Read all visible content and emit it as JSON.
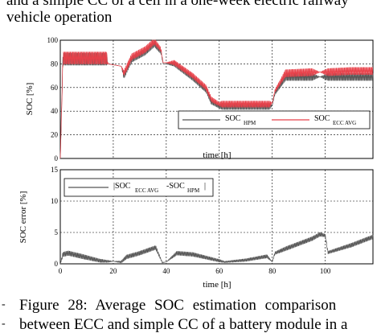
{
  "page_text": {
    "line1": "and a simple CC of a cell in a one-week electric railway",
    "line2": "vehicle operation",
    "caption_line1": "Figure 28: Average SOC estimation comparison",
    "caption_line2": "between ECC and simple CC of a battery module in a",
    "bullet1": "-",
    "bullet2": "-"
  },
  "chart_data": [
    {
      "type": "line",
      "ylabel": "SOC [%]",
      "xlabel": "time [h]",
      "xlim": [
        0,
        118
      ],
      "ylim": [
        0,
        100
      ],
      "xticks": [
        "0",
        "20",
        "40",
        "60",
        "80",
        "100"
      ],
      "yticks": [
        "0",
        "20",
        "40",
        "60",
        "80",
        "100"
      ],
      "grid": true,
      "legend_position": "bottom-right",
      "series": [
        {
          "name": "SOC_HPM",
          "name_main": "SOC",
          "name_sub": "HPM",
          "color": "#555555",
          "x": [
            0,
            1,
            3,
            10,
            17.5,
            18,
            23,
            24,
            27,
            32,
            35.5,
            38,
            38.8,
            40,
            43,
            50,
            55,
            57,
            60,
            61,
            70,
            79,
            80,
            81,
            85,
            95,
            98,
            101,
            110,
            118
          ],
          "y": [
            0,
            84,
            84,
            84,
            84,
            80,
            78,
            70,
            84,
            90,
            97,
            90,
            80,
            80,
            80,
            68,
            58,
            48,
            44,
            44,
            44,
            44,
            45,
            55,
            69,
            69,
            69,
            69,
            69,
            69
          ],
          "amplitude": [
            0,
            10,
            10,
            10,
            10,
            0,
            0,
            5,
            5,
            5,
            5,
            3,
            0,
            0,
            4,
            4,
            4,
            4,
            3,
            5,
            5,
            5,
            0,
            2,
            6,
            6,
            0,
            6,
            6,
            6
          ]
        },
        {
          "name": "SOC_ECC AVG",
          "name_main": "SOC",
          "name_sub": "ECC AVG",
          "color": "#e8414a",
          "x": [
            0,
            1,
            3,
            10,
            17.5,
            18,
            23,
            24,
            27,
            32,
            35.5,
            38,
            38.8,
            40,
            43,
            50,
            55,
            57,
            60,
            61,
            70,
            79,
            80,
            81,
            85,
            95,
            98,
            101,
            110,
            118
          ],
          "y": [
            0,
            85,
            85,
            85,
            85,
            80,
            78,
            72,
            86,
            92,
            99,
            92,
            81,
            81,
            81,
            70,
            60,
            50,
            46,
            46,
            46,
            46,
            47,
            57,
            72,
            73,
            73,
            73,
            74,
            74
          ],
          "amplitude": [
            0,
            10,
            10,
            10,
            10,
            0,
            0,
            5,
            5,
            5,
            5,
            3,
            0,
            0,
            4,
            4,
            4,
            4,
            3,
            5,
            5,
            5,
            0,
            2,
            6,
            6,
            0,
            6,
            6,
            6
          ]
        }
      ]
    },
    {
      "type": "line",
      "ylabel": "SOC error [%]",
      "xlabel": "time [h]",
      "xlim": [
        0,
        118
      ],
      "ylim": [
        0,
        15
      ],
      "xticks": [
        "0",
        "20",
        "40",
        "60",
        "80",
        "100"
      ],
      "yticks": [
        "0",
        "5",
        "10",
        "15"
      ],
      "grid": true,
      "legend_position": "top-left",
      "series": [
        {
          "name": "|SOC_ECC AVG - SOC_HPM|",
          "legend_parts": [
            "|SOC",
            "ECC AVG",
            "-SOC",
            "HPM",
            "|"
          ],
          "color": "#555555",
          "x": [
            0,
            1,
            3,
            8,
            15,
            18,
            20,
            23,
            25,
            30,
            36,
            38.5,
            40,
            44,
            50,
            55,
            60,
            62,
            70,
            78,
            80,
            81,
            85,
            95,
            98,
            100,
            101,
            110,
            118
          ],
          "y": [
            0,
            1.5,
            1.7,
            1.2,
            0.5,
            0.4,
            0.4,
            0.3,
            1.1,
            1.7,
            2.6,
            0.2,
            0.3,
            1.7,
            1.5,
            1.0,
            0.5,
            0.3,
            0.6,
            1.2,
            0.3,
            1.7,
            2.4,
            4.0,
            4.7,
            4.5,
            1.8,
            3.0,
            4.3
          ],
          "amplitude": [
            0,
            0.7,
            0.7,
            0.7,
            0.5,
            0.3,
            0,
            0.3,
            0.6,
            0.6,
            0.6,
            0.1,
            0,
            0.6,
            0.6,
            0.5,
            0.4,
            0.2,
            0.4,
            0.5,
            0,
            0.4,
            0.6,
            0.6,
            0.6,
            0.4,
            0.4,
            0.6,
            0.6
          ]
        }
      ]
    }
  ]
}
